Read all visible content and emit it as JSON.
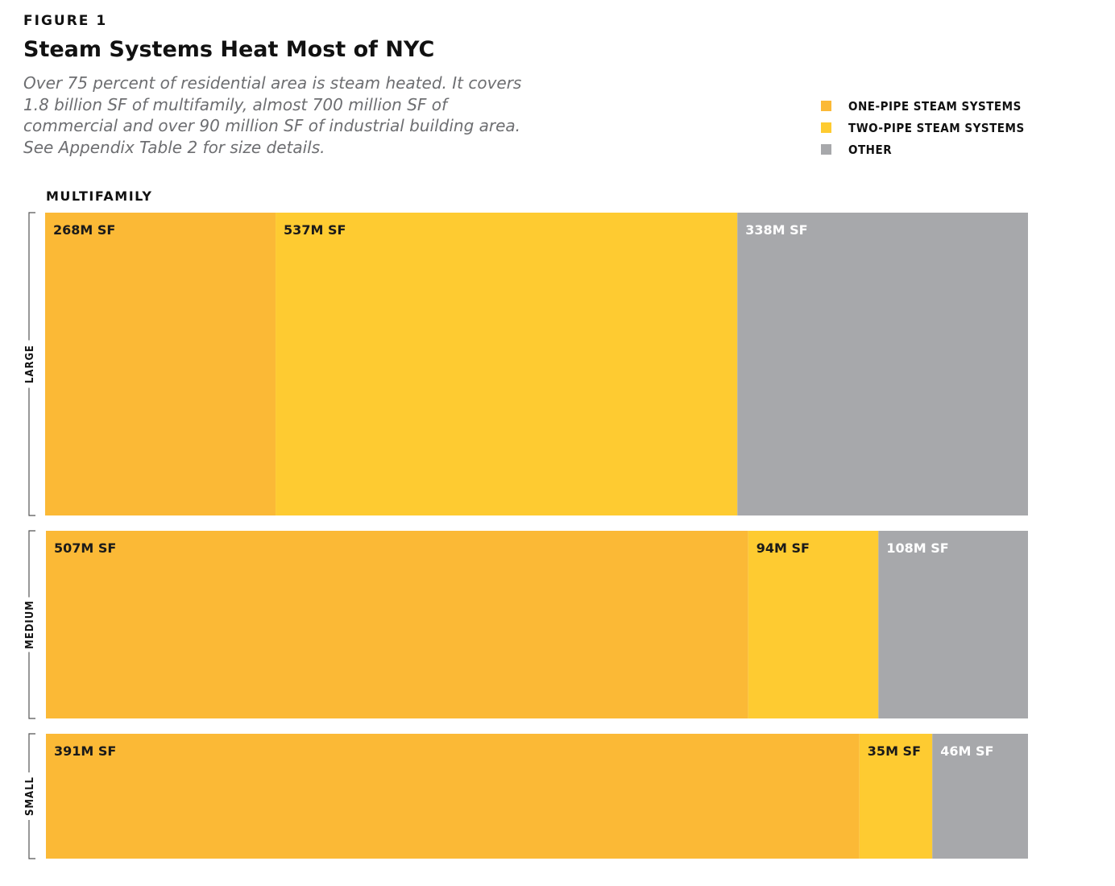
{
  "figure_label": "FIGURE 1",
  "chart_data": {
    "type": "bar",
    "stacked": true,
    "orientation": "horizontal",
    "title": "Steam Systems Heat Most of NYC",
    "subtitle": "Over 75 percent of residential area is steam heated. It covers 1.8 billion SF of multifamily, almost 700 million SF of commercial and over 90 million SF of industrial building area. See Appendix Table 2 for size details.",
    "section": "MULTIFAMILY",
    "categories": [
      "LARGE",
      "MEDIUM",
      "SMALL"
    ],
    "series": [
      {
        "name": "ONE-PIPE STEAM SYSTEMS",
        "color": "#fbb936",
        "values": [
          268,
          507,
          391
        ],
        "labels": [
          "268M SF",
          "507M SF",
          "391M SF"
        ]
      },
      {
        "name": "TWO-PIPE STEAM SYSTEMS",
        "color": "#fecb31",
        "values": [
          537,
          94,
          35
        ],
        "labels": [
          "537M SF",
          "94M SF",
          "35M SF"
        ]
      },
      {
        "name": "OTHER",
        "color": "#a7a8ab",
        "values": [
          338,
          108,
          46
        ],
        "labels": [
          "338M SF",
          "108M SF",
          "46M SF"
        ]
      }
    ],
    "legend_position": "top-right",
    "grid": false
  }
}
